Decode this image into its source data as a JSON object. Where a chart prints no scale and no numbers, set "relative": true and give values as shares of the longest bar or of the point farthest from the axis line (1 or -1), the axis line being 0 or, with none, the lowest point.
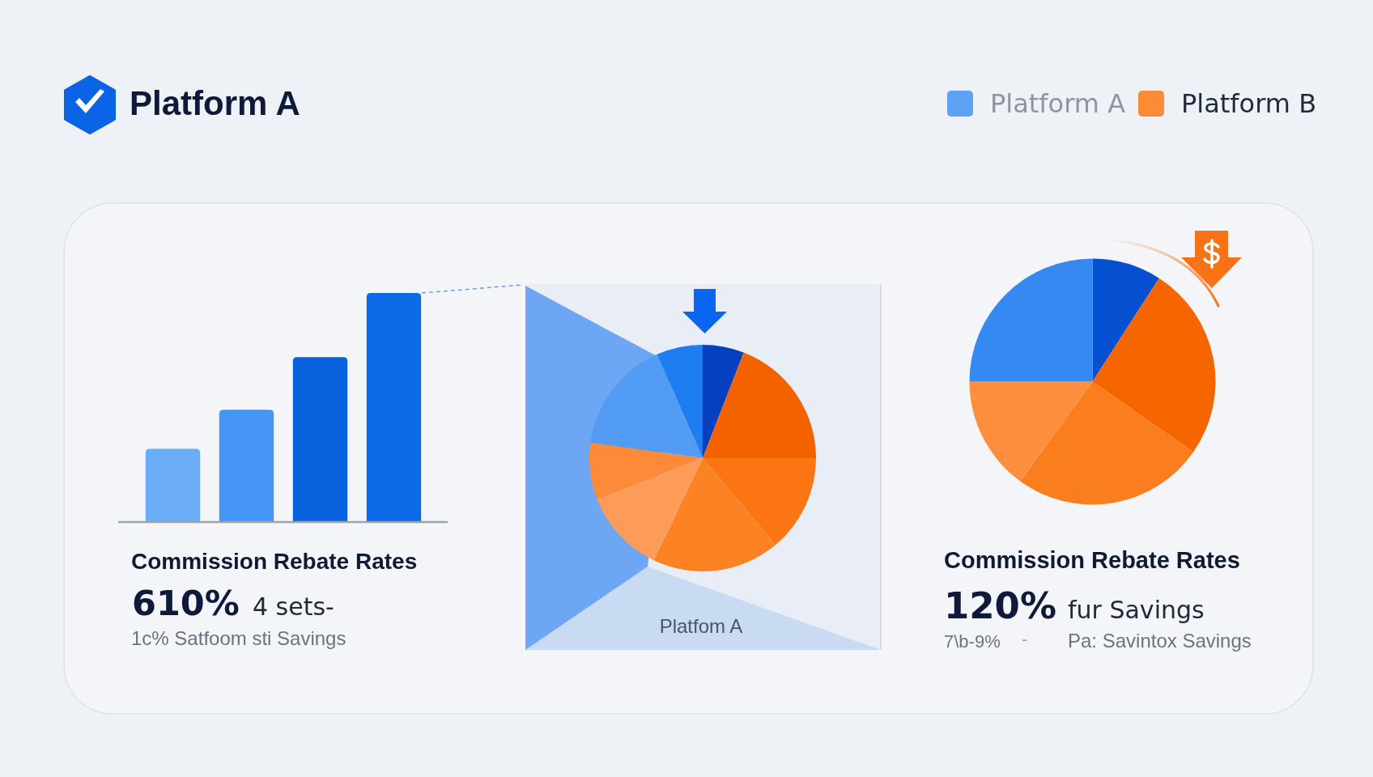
{
  "chart_data": [
    {
      "type": "other",
      "title": "Platform A",
      "series": [
        {
          "name": "Platform A",
          "color": "#5ea2f6"
        },
        {
          "name": "Platform B",
          "color": "#fb8b34"
        }
      ],
      "legend": "top right"
    },
    {
      "type": "bar",
      "relative": true,
      "title": "Commission Rebate Rates",
      "categories": [
        null,
        null,
        null,
        null
      ],
      "values": [
        0.32,
        0.49,
        0.72,
        1
      ],
      "colors": [
        "#6aacf6",
        "#4495f4",
        "#0a62de",
        "#0c6ae6"
      ],
      "annotations": [
        "610%",
        "4 sets-",
        "1c% Satfoom sti Savings"
      ]
    },
    {
      "type": "pie",
      "title": "Platfom A",
      "categories": [
        null,
        null,
        null,
        null,
        null,
        null,
        null,
        null
      ],
      "values": [
        5.9,
        19.1,
        13.9,
        18.2,
        12.0,
        8.1,
        16.2,
        6.6
      ],
      "colors": [
        "#0440c0",
        "#f46200",
        "#fb7512",
        "#fc8324",
        "#fd9c58",
        "#fc8a38",
        "#529cf5",
        "#1e7ef0"
      ]
    },
    {
      "type": "pie",
      "title": "Commission Rebate Rates",
      "categories": [
        null,
        null,
        null,
        null,
        null
      ],
      "values": [
        9.1,
        25.6,
        25.3,
        15.0,
        25.0
      ],
      "colors": [
        "#0550d0",
        "#f56500",
        "#fb7e1e",
        "#fd8f3e",
        "#3689f0"
      ],
      "annotations": [
        "120%",
        "fur Savings",
        "7\\b-9%",
        "-",
        "Pa: Savintox Savings"
      ]
    }
  ]
}
